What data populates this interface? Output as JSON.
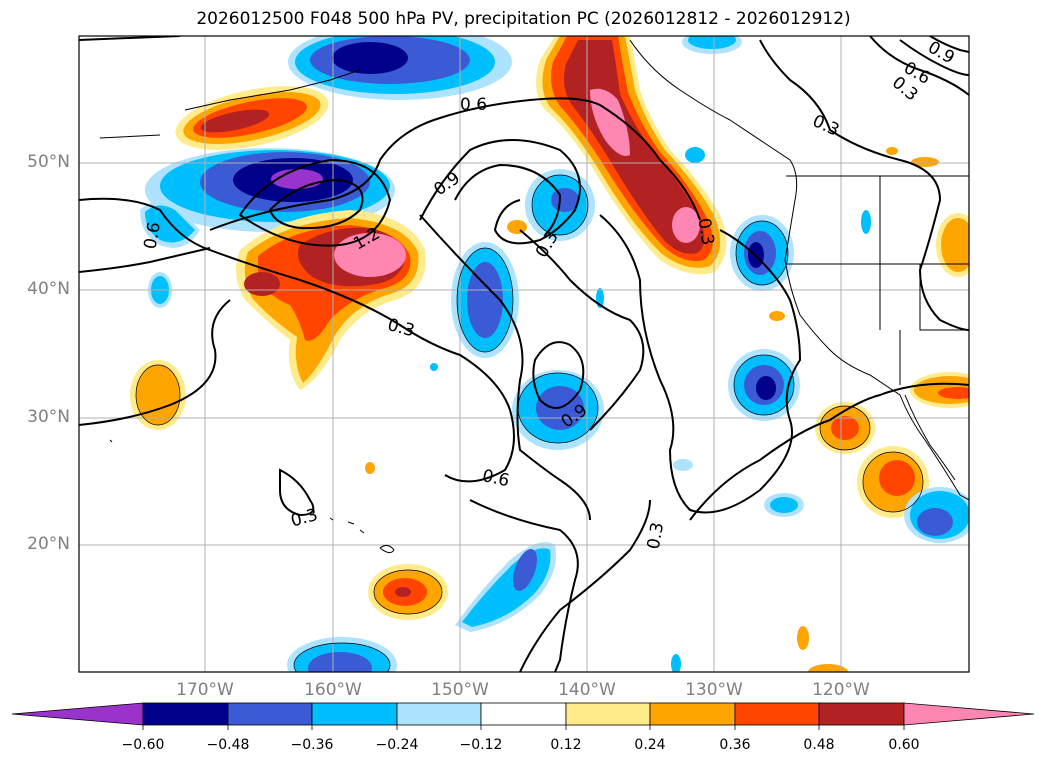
{
  "title": "2026012500 F048 500 hPa PV, precipitation PC (2026012812 - 2026012912)",
  "map": {
    "lat_labels": [
      "50°N",
      "40°N",
      "30°N",
      "20°N"
    ],
    "lon_labels": [
      "170°W",
      "160°W",
      "150°W",
      "140°W",
      "130°W",
      "120°W"
    ],
    "contour_labels": [
      "0.6",
      "0.9",
      "1.2",
      "0.3",
      "0.3",
      "0.6",
      "0.3",
      "0.9",
      "0.6",
      "0.3",
      "0.3",
      "0.3",
      "0.6",
      "0.9",
      "0.3"
    ]
  },
  "colorbar": {
    "colors": [
      "#9933cc",
      "#00008b",
      "#3b5bd6",
      "#00bfff",
      "#aee3ff",
      "#ffffff",
      "#ffeb8a",
      "#ffa500",
      "#ff4500",
      "#b22222",
      "#ff85b3"
    ],
    "ticks": [
      "−0.60",
      "−0.48",
      "−0.36",
      "−0.24",
      "−0.12",
      "0.12",
      "0.24",
      "0.36",
      "0.48",
      "0.60"
    ]
  }
}
